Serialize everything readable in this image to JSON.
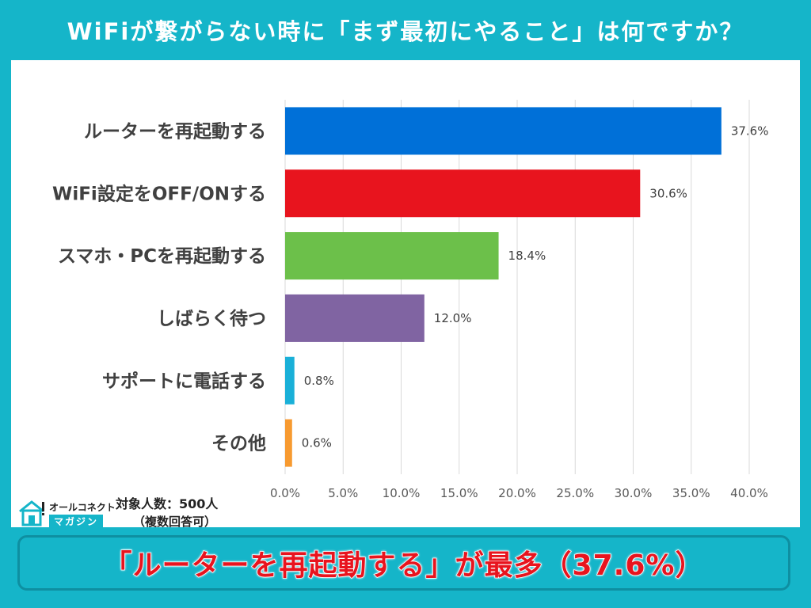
{
  "header": {
    "title": "WiFiが繋がらない時に「まず最初にやること」は何ですか？"
  },
  "chart_data": {
    "type": "bar",
    "orientation": "horizontal",
    "categories": [
      "ルーターを再起動する",
      "WiFi設定をOFF/ONする",
      "スマホ・PCを再起動する",
      "しばらく待つ",
      "サポートに電話する",
      "その他"
    ],
    "values": [
      37.6,
      30.6,
      18.4,
      12.0,
      0.8,
      0.6
    ],
    "value_labels": [
      "37.6%",
      "30.6%",
      "18.4%",
      "12.0%",
      "0.8%",
      "0.6%"
    ],
    "colors": [
      "#0070d8",
      "#e8141e",
      "#6cc04a",
      "#8064a2",
      "#1ab0d8",
      "#f79a30"
    ],
    "xlim": [
      0,
      40
    ],
    "xticks": [
      0,
      5,
      10,
      15,
      20,
      25,
      30,
      35,
      40
    ],
    "xtick_labels": [
      "0.0%",
      "5.0%",
      "10.0%",
      "15.0%",
      "20.0%",
      "25.0%",
      "30.0%",
      "35.0%",
      "40.0%"
    ],
    "grid": true,
    "xlabel": "",
    "ylabel": ""
  },
  "footer": {
    "logo_top": "オールコネクト",
    "logo_bottom": "マガジン",
    "sample": "対象人数：500人",
    "note": "（複数回答可）"
  },
  "conclusion": {
    "text": "「ルーターを再起動する」が最多（37.6%）"
  }
}
